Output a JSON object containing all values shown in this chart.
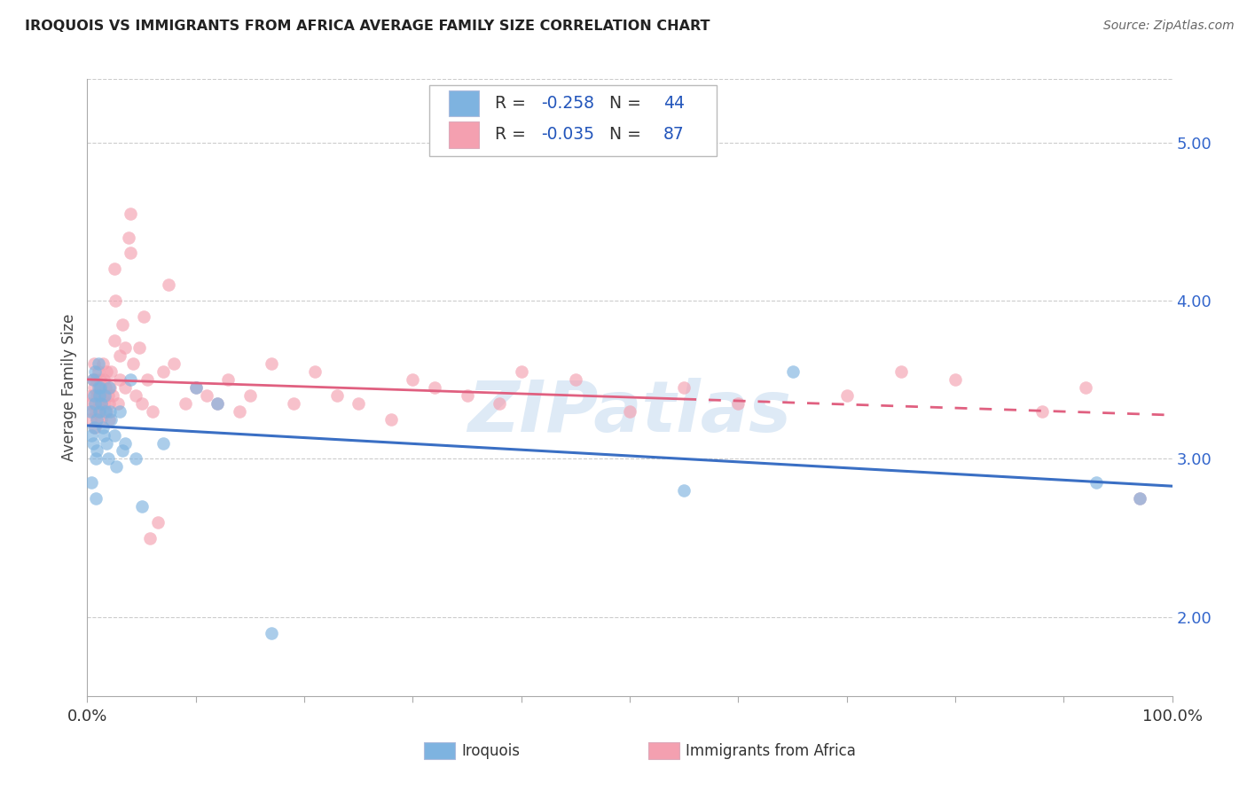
{
  "title": "IROQUOIS VS IMMIGRANTS FROM AFRICA AVERAGE FAMILY SIZE CORRELATION CHART",
  "source": "Source: ZipAtlas.com",
  "ylabel": "Average Family Size",
  "legend_label1": "Iroquois",
  "legend_label2": "Immigrants from Africa",
  "R1": -0.258,
  "N1": 44,
  "R2": -0.035,
  "N2": 87,
  "color_blue": "#7EB3E0",
  "color_pink": "#F4A0B0",
  "color_blue_line": "#3A6FC4",
  "color_pink_line": "#E06080",
  "watermark": "ZIPatlas",
  "xlim": [
    0.0,
    1.0
  ],
  "ylim": [
    1.5,
    5.4
  ],
  "yticks": [
    2.0,
    3.0,
    4.0,
    5.0
  ],
  "iroquois_x": [
    0.003,
    0.004,
    0.004,
    0.005,
    0.005,
    0.006,
    0.006,
    0.007,
    0.007,
    0.008,
    0.008,
    0.009,
    0.009,
    0.01,
    0.01,
    0.011,
    0.011,
    0.012,
    0.013,
    0.014,
    0.015,
    0.016,
    0.017,
    0.018,
    0.019,
    0.02,
    0.021,
    0.022,
    0.025,
    0.027,
    0.03,
    0.032,
    0.035,
    0.04,
    0.045,
    0.05,
    0.07,
    0.1,
    0.12,
    0.17,
    0.55,
    0.65,
    0.93,
    0.97
  ],
  "iroquois_y": [
    3.3,
    3.15,
    2.85,
    3.5,
    3.1,
    3.4,
    3.2,
    3.55,
    3.35,
    3.0,
    2.75,
    3.25,
    3.05,
    3.6,
    3.45,
    3.4,
    3.3,
    3.45,
    3.35,
    3.2,
    3.15,
    3.4,
    3.3,
    3.1,
    3.0,
    3.45,
    3.3,
    3.25,
    3.15,
    2.95,
    3.3,
    3.05,
    3.1,
    3.5,
    3.0,
    2.7,
    3.1,
    3.45,
    3.35,
    1.9,
    2.8,
    3.55,
    2.85,
    2.75
  ],
  "africa_x": [
    0.002,
    0.003,
    0.004,
    0.005,
    0.005,
    0.006,
    0.006,
    0.007,
    0.007,
    0.008,
    0.008,
    0.009,
    0.009,
    0.01,
    0.01,
    0.01,
    0.011,
    0.011,
    0.012,
    0.012,
    0.013,
    0.013,
    0.014,
    0.015,
    0.015,
    0.016,
    0.017,
    0.018,
    0.018,
    0.019,
    0.02,
    0.02,
    0.021,
    0.022,
    0.023,
    0.025,
    0.025,
    0.026,
    0.028,
    0.03,
    0.03,
    0.032,
    0.035,
    0.035,
    0.038,
    0.04,
    0.04,
    0.042,
    0.045,
    0.048,
    0.05,
    0.052,
    0.055,
    0.058,
    0.06,
    0.065,
    0.07,
    0.075,
    0.08,
    0.09,
    0.1,
    0.11,
    0.12,
    0.13,
    0.14,
    0.15,
    0.17,
    0.19,
    0.21,
    0.23,
    0.25,
    0.28,
    0.3,
    0.32,
    0.35,
    0.38,
    0.4,
    0.45,
    0.5,
    0.55,
    0.6,
    0.7,
    0.75,
    0.8,
    0.88,
    0.92,
    0.97
  ],
  "africa_y": [
    3.35,
    3.25,
    3.4,
    3.5,
    3.3,
    3.6,
    3.45,
    3.35,
    3.2,
    3.5,
    3.3,
    3.4,
    3.25,
    3.55,
    3.4,
    3.3,
    3.45,
    3.35,
    3.5,
    3.4,
    3.35,
    3.25,
    3.6,
    3.5,
    3.4,
    3.35,
    3.45,
    3.3,
    3.55,
    3.4,
    3.35,
    3.25,
    3.45,
    3.55,
    3.4,
    4.2,
    3.75,
    4.0,
    3.35,
    3.65,
    3.5,
    3.85,
    3.7,
    3.45,
    4.4,
    4.55,
    4.3,
    3.6,
    3.4,
    3.7,
    3.35,
    3.9,
    3.5,
    2.5,
    3.3,
    2.6,
    3.55,
    4.1,
    3.6,
    3.35,
    3.45,
    3.4,
    3.35,
    3.5,
    3.3,
    3.4,
    3.6,
    3.35,
    3.55,
    3.4,
    3.35,
    3.25,
    3.5,
    3.45,
    3.4,
    3.35,
    3.55,
    3.5,
    3.3,
    3.45,
    3.35,
    3.4,
    3.55,
    3.5,
    3.3,
    3.45,
    2.75
  ]
}
